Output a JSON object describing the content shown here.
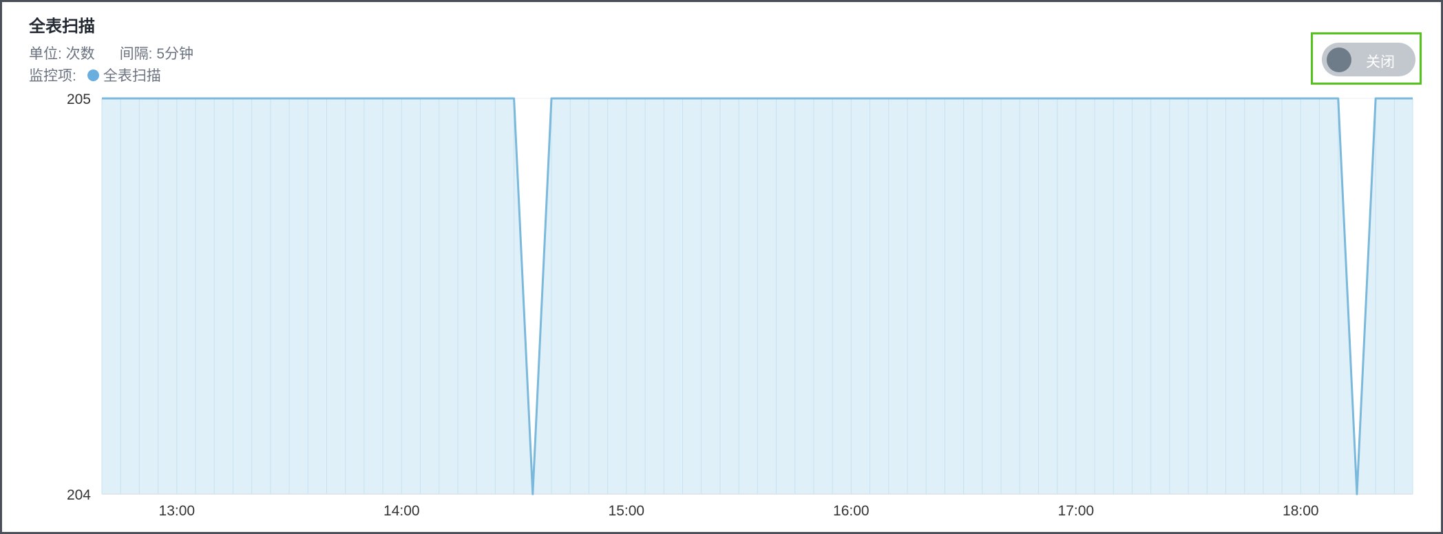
{
  "panel": {
    "title": "全表扫描",
    "unit_label": "单位: 次数",
    "interval_label": "间隔: 5分钟",
    "monitor_label": "监控项:"
  },
  "toggle": {
    "label": "关闭",
    "state": "off"
  },
  "colors": {
    "series": "#7ab8dc",
    "fill": "#e0f0f8",
    "legend_dot": "#6aaee0",
    "toggle_outline": "#52c41a"
  },
  "chart_data": {
    "type": "area",
    "title": "全表扫描",
    "xlabel": "",
    "ylabel": "",
    "ylim": [
      204,
      205
    ],
    "yticks": [
      "205",
      "204"
    ],
    "xticks": [
      "13:00",
      "14:00",
      "15:00",
      "16:00",
      "17:00",
      "18:00"
    ],
    "x_start": "12:40",
    "x_interval_minutes": 5,
    "series": [
      {
        "name": "全表扫描",
        "values": [
          205,
          205,
          205,
          205,
          205,
          205,
          205,
          205,
          205,
          205,
          205,
          205,
          205,
          205,
          205,
          205,
          205,
          205,
          205,
          205,
          205,
          205,
          205,
          204,
          205,
          205,
          205,
          205,
          205,
          205,
          205,
          205,
          205,
          205,
          205,
          205,
          205,
          205,
          205,
          205,
          205,
          205,
          205,
          205,
          205,
          205,
          205,
          205,
          205,
          205,
          205,
          205,
          205,
          205,
          205,
          205,
          205,
          205,
          205,
          205,
          205,
          205,
          205,
          205,
          205,
          205,
          205,
          204,
          205,
          205,
          205
        ]
      }
    ]
  }
}
